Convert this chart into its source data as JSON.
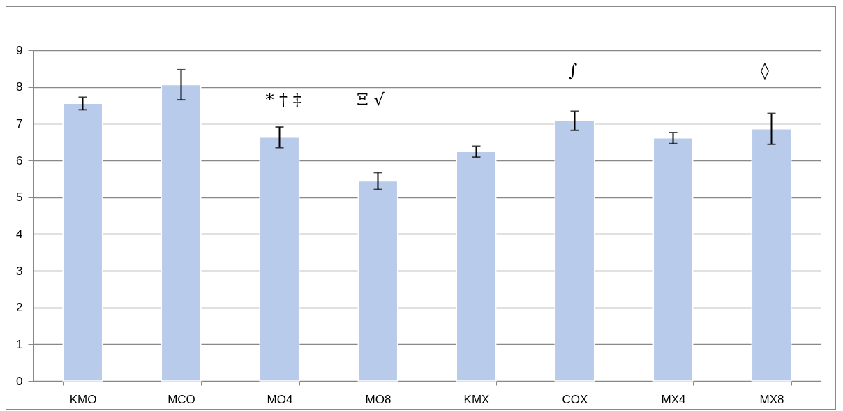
{
  "chart_data": {
    "type": "bar",
    "categories": [
      "KMO",
      "MCO",
      "MO4",
      "MO8",
      "KMX",
      "COX",
      "MX4",
      "MX8"
    ],
    "values": [
      7.55,
      8.06,
      6.63,
      5.44,
      6.24,
      7.08,
      6.61,
      6.86
    ],
    "errors": [
      0.17,
      0.41,
      0.28,
      0.23,
      0.15,
      0.26,
      0.15,
      0.42
    ],
    "color": "#b8cbea",
    "ylim": [
      0,
      9
    ],
    "yticks": [
      0,
      1,
      2,
      3,
      4,
      5,
      6,
      7,
      8,
      9
    ],
    "grid": "y",
    "annotations": [
      "* † ‡",
      "Ξ √",
      "∫",
      "◊"
    ]
  }
}
